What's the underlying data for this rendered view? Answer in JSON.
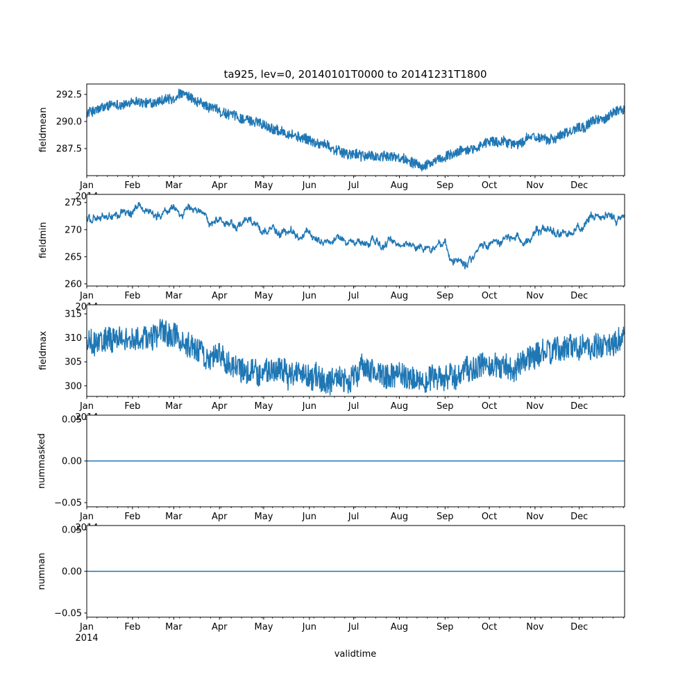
{
  "chart_data": {
    "type": "line",
    "title": "ta925, lev=0, 20140101T0000 to 20141231T1800",
    "xlabel": "validtime",
    "x_year_label": "2014",
    "x_range_days": [
      0,
      364.75
    ],
    "x_ticks": [
      {
        "label": "Jan",
        "day": 0
      },
      {
        "label": "Feb",
        "day": 31
      },
      {
        "label": "Mar",
        "day": 59
      },
      {
        "label": "Apr",
        "day": 90
      },
      {
        "label": "May",
        "day": 120
      },
      {
        "label": "Jun",
        "day": 151
      },
      {
        "label": "Jul",
        "day": 181
      },
      {
        "label": "Aug",
        "day": 212
      },
      {
        "label": "Sep",
        "day": 243
      },
      {
        "label": "Oct",
        "day": 273
      },
      {
        "label": "Nov",
        "day": 304
      },
      {
        "label": "Dec",
        "day": 334
      }
    ],
    "sample_step_hours": 6,
    "line_color": "#1f77b4",
    "panels": [
      {
        "ylabel": "fieldmean",
        "ylim": [
          285.0,
          293.46
        ],
        "yticks": [
          {
            "v": 287.5,
            "label": "287.5"
          },
          {
            "v": 290.0,
            "label": "290.0"
          },
          {
            "v": 292.5,
            "label": "292.5"
          }
        ],
        "noise": 0.45,
        "slow_noise": 0.25,
        "anchors_day": [
          0,
          14,
          31,
          45,
          59,
          65,
          74,
          90,
          104,
          120,
          134,
          151,
          165,
          181,
          195,
          212,
          226,
          243,
          257,
          273,
          287,
          304,
          318,
          334,
          348,
          364.75
        ],
        "anchors_value": [
          290.8,
          291.3,
          291.7,
          291.6,
          291.8,
          292.4,
          291.6,
          291.0,
          290.4,
          289.8,
          289.1,
          288.2,
          287.6,
          287.0,
          286.8,
          286.6,
          286.3,
          286.6,
          287.3,
          288.2,
          288.1,
          288.5,
          288.7,
          289.7,
          290.2,
          291.0
        ]
      },
      {
        "ylabel": "fieldmin",
        "ylim": [
          259.6,
          276.5
        ],
        "yticks": [
          {
            "v": 260,
            "label": "260"
          },
          {
            "v": 265,
            "label": "265"
          },
          {
            "v": 270,
            "label": "270"
          },
          {
            "v": 275,
            "label": "275"
          }
        ],
        "noise": 0.4,
        "slow_noise": 1.8,
        "anchors_day": [
          0,
          31,
          59,
          90,
          120,
          151,
          181,
          212,
          243,
          250,
          273,
          304,
          334,
          364.75
        ],
        "anchors_value": [
          271.8,
          273.0,
          273.5,
          272.3,
          270.5,
          268.5,
          268.0,
          267.0,
          266.8,
          264.5,
          268.5,
          269.0,
          270.2,
          271.5
        ]
      },
      {
        "ylabel": "fieldmax",
        "ylim": [
          297.8,
          316.9
        ],
        "yticks": [
          {
            "v": 300,
            "label": "300"
          },
          {
            "v": 305,
            "label": "305"
          },
          {
            "v": 310,
            "label": "310"
          },
          {
            "v": 315,
            "label": "315"
          }
        ],
        "noise": 2.6,
        "slow_noise": 1.5,
        "anchors_day": [
          0,
          31,
          59,
          90,
          120,
          151,
          181,
          212,
          243,
          273,
          304,
          334,
          364.75
        ],
        "anchors_value": [
          309.0,
          310.0,
          310.5,
          306.0,
          303.5,
          302.0,
          301.8,
          301.5,
          301.8,
          304.0,
          304.5,
          308.0,
          311.0
        ]
      },
      {
        "ylabel": "nummasked",
        "ylim": [
          -0.055,
          0.055
        ],
        "yticks": [
          {
            "v": -0.05,
            "label": "−0.05"
          },
          {
            "v": 0,
            "label": "0.00"
          },
          {
            "v": 0.05,
            "label": "0.05"
          }
        ],
        "noise": 0,
        "slow_noise": 0,
        "anchors_day": [
          0,
          364.75
        ],
        "anchors_value": [
          0,
          0
        ]
      },
      {
        "ylabel": "numnan",
        "ylim": [
          -0.055,
          0.055
        ],
        "yticks": [
          {
            "v": -0.05,
            "label": "−0.05"
          },
          {
            "v": 0,
            "label": "0.00"
          },
          {
            "v": 0.05,
            "label": "0.05"
          }
        ],
        "noise": 0,
        "slow_noise": 0,
        "anchors_day": [
          0,
          364.75
        ],
        "anchors_value": [
          0,
          0
        ]
      }
    ]
  }
}
